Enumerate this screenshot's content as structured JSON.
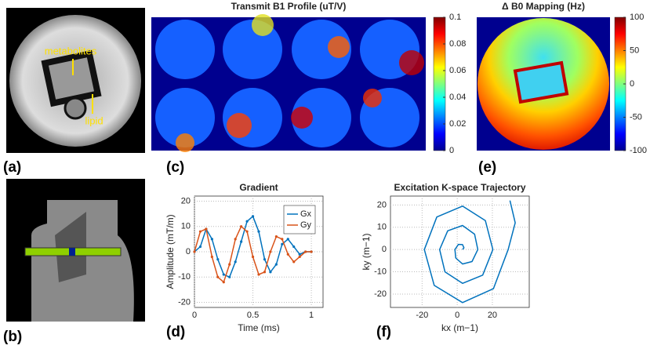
{
  "panels": {
    "a": "(a)",
    "b": "(b)",
    "c": "(c)",
    "d": "(d)",
    "e": "(e)",
    "f": "(f)"
  },
  "annotations": {
    "metabolites": "metabolites",
    "lipid": "lipid"
  },
  "chart_data": [
    {
      "type": "colorbar",
      "title": "Transmit B1 Profile (uT/V)",
      "ylim": [
        0,
        0.1
      ],
      "yticks": [
        0,
        0.02,
        0.04,
        0.06,
        0.08,
        0.1
      ]
    },
    {
      "type": "colorbar",
      "title": "Δ B0 Mapping (Hz)",
      "ylim": [
        -100,
        100
      ],
      "yticks": [
        -100,
        -50,
        0,
        50,
        100
      ]
    },
    {
      "type": "line",
      "title": "Gradient",
      "xlabel": "Time (ms)",
      "ylabel": "Amplitude (mT/m)",
      "x": [
        0,
        0.05,
        0.1,
        0.15,
        0.2,
        0.25,
        0.3,
        0.35,
        0.4,
        0.45,
        0.5,
        0.55,
        0.6,
        0.65,
        0.7,
        0.75,
        0.8,
        0.85,
        0.9,
        0.95,
        1
      ],
      "series": [
        {
          "name": "Gx",
          "color": "#0072bd",
          "values": [
            0,
            2,
            9,
            5,
            -3,
            -9,
            -10,
            -4,
            4,
            12,
            14,
            8,
            -3,
            -8,
            -5,
            3,
            5,
            2,
            -1,
            0,
            0
          ]
        },
        {
          "name": "Gy",
          "color": "#d95319",
          "values": [
            0,
            8,
            9,
            -2,
            -10,
            -12,
            -5,
            5,
            10,
            8,
            -2,
            -9,
            -8,
            0,
            6,
            5,
            -1,
            -4,
            -2,
            0,
            0
          ]
        }
      ],
      "xlim": [
        0,
        1.1
      ],
      "ylim": [
        -22,
        22
      ],
      "xticks": [
        0,
        0.5,
        1
      ],
      "yticks": [
        -20,
        -10,
        0,
        10,
        20
      ],
      "grid": true,
      "legend": "upper-right"
    },
    {
      "type": "line",
      "title": "Excitation K-space Trajectory",
      "xlabel": "kx (m−1)",
      "ylabel": "ky (m−1)",
      "x": [
        3,
        3.8,
        3,
        0.7,
        -1.3,
        -0.8,
        3,
        8.4,
        11.7,
        9.9,
        3,
        -5.4,
        -10,
        -7,
        3,
        14.5,
        20.3,
        16,
        3,
        -11.6,
        -18.7,
        -13.1,
        3,
        20.6,
        29,
        33,
        30
      ],
      "values": [
        0,
        0.8,
        2.2,
        2.3,
        0,
        -3.8,
        -6.5,
        -5.4,
        0,
        6.9,
        10.8,
        8.4,
        0,
        -10,
        -15.2,
        -11.5,
        0,
        13,
        19.5,
        14.6,
        0,
        -16.1,
        -23.8,
        -17.6,
        0,
        12,
        22
      ],
      "color": "#0072bd",
      "xlim": [
        -38,
        41
      ],
      "ylim": [
        -26,
        24
      ],
      "xticks": [
        -20,
        0,
        20
      ],
      "yticks": [
        -20,
        -10,
        0,
        10,
        20
      ],
      "grid": true
    }
  ]
}
